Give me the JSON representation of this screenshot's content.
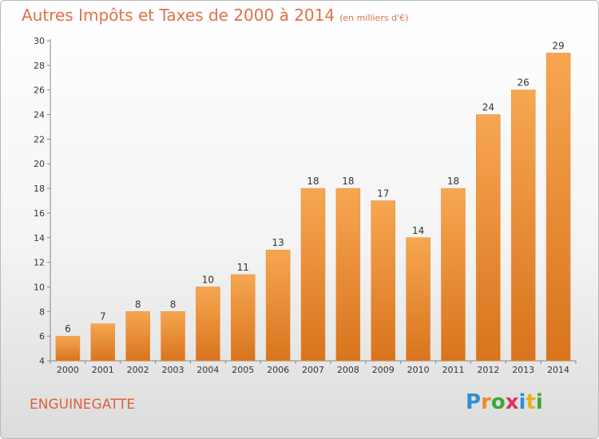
{
  "chart_data": {
    "type": "bar",
    "title": "Autres Impôts et Taxes de 2000 à 2014",
    "subtitle": "(en milliers d'€)",
    "categories": [
      "2000",
      "2001",
      "2002",
      "2003",
      "2004",
      "2005",
      "2006",
      "2007",
      "2008",
      "2009",
      "2010",
      "2011",
      "2012",
      "2013",
      "2014"
    ],
    "values": [
      6,
      7,
      8,
      8,
      10,
      11,
      13,
      18,
      18,
      17,
      14,
      18,
      24,
      26,
      29
    ],
    "ylim": [
      4,
      30
    ],
    "yticks": [
      4,
      6,
      8,
      10,
      12,
      14,
      16,
      18,
      20,
      22,
      24,
      26,
      28,
      30
    ],
    "grid": false,
    "bar_color": "#f08a2c"
  },
  "footer": {
    "city": "ENGUINEGATTE",
    "logo": "Proxiti"
  }
}
